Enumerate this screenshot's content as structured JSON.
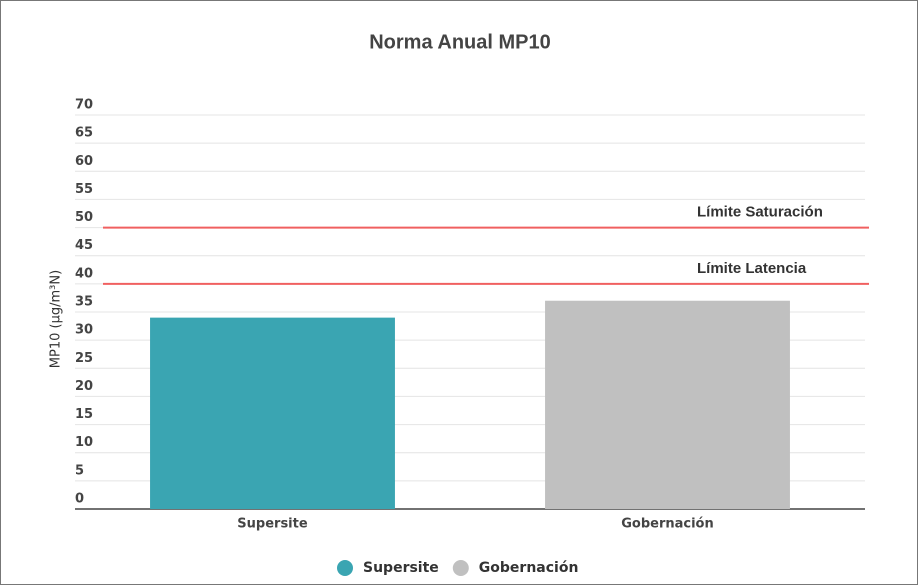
{
  "chart_data": {
    "type": "bar",
    "title": "Norma Anual MP10",
    "y_label": "MP10 (µg/m³N)",
    "categories": [
      "Supersite",
      "Gobernación"
    ],
    "values": [
      34,
      37
    ],
    "colors": [
      "#3aa5b2",
      "#c0c0c0"
    ],
    "ylim": [
      0,
      70
    ],
    "yticks": [
      0,
      5,
      10,
      15,
      20,
      25,
      30,
      35,
      40,
      45,
      50,
      55,
      60,
      65,
      70
    ],
    "grid": true,
    "reference_lines": [
      {
        "label": "Límite Saturación",
        "value": 50,
        "color": "#f06060"
      },
      {
        "label": "Límite Latencia",
        "value": 40,
        "color": "#f06060"
      }
    ],
    "legend": "bottom"
  }
}
